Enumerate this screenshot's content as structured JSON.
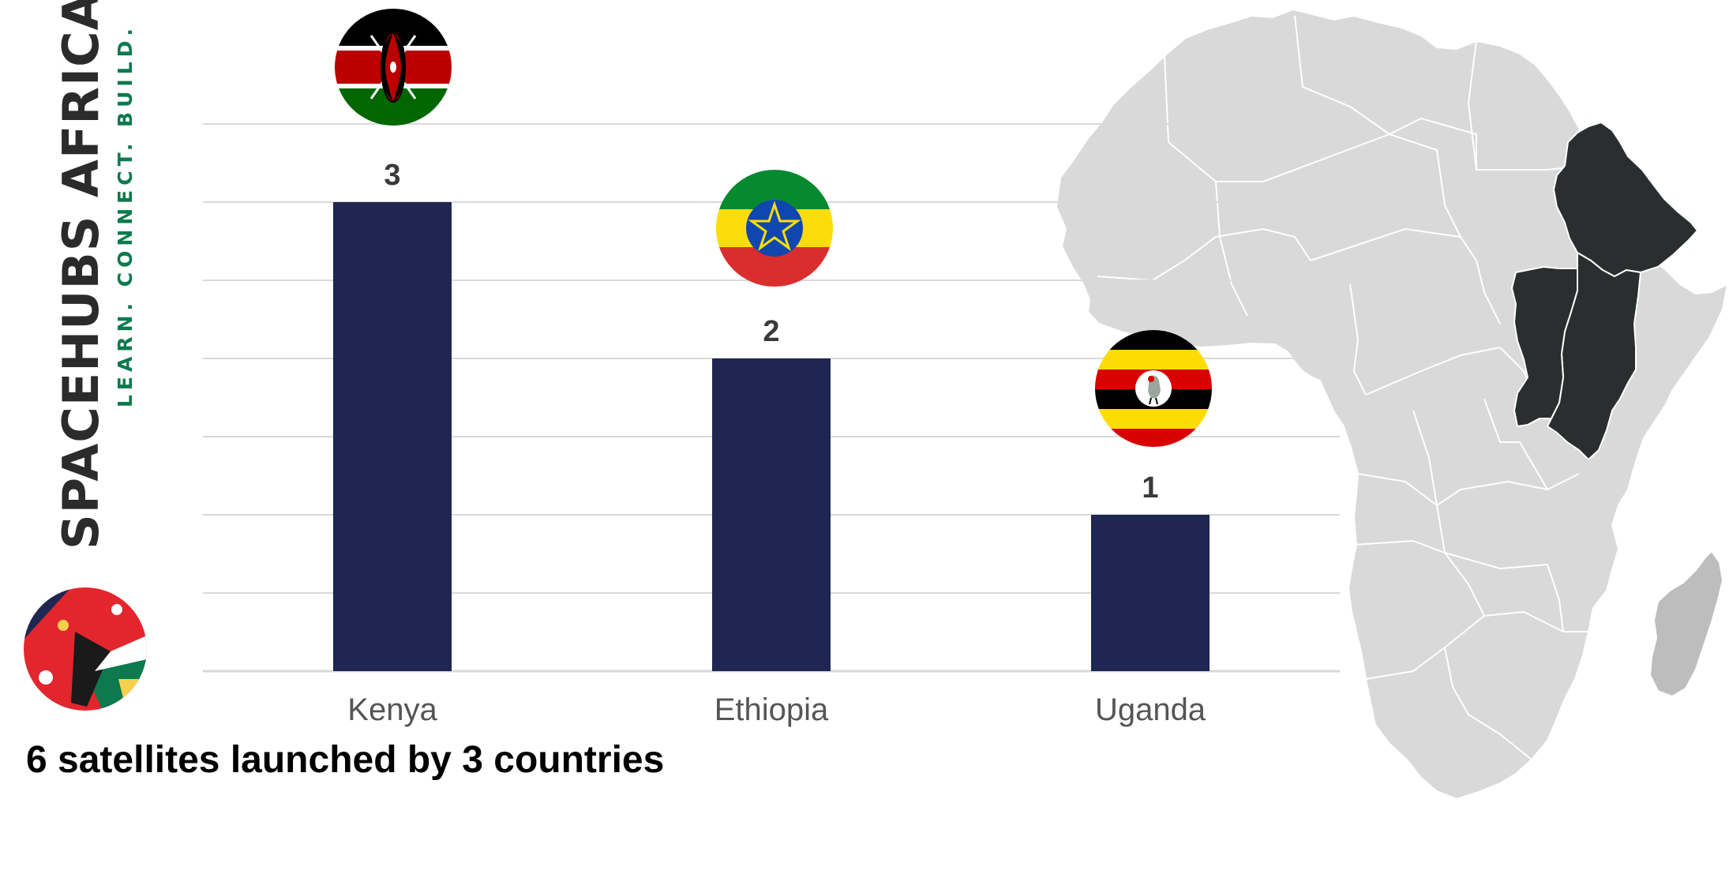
{
  "brand": {
    "name": "SPACEHUBS AFRICA",
    "tagline": "LEARN. CONNECT. BUILD."
  },
  "caption": "6 satellites launched by 3 countries",
  "colors": {
    "bar": "#1e2651",
    "grid": "#d9d9d9",
    "map_land": "#d9d9d9",
    "map_highlight": "#2b2e2f",
    "map_madagascar": "#bdbdbd"
  },
  "chart_data": {
    "type": "bar",
    "categories": [
      "Kenya",
      "Ethiopia",
      "Uganda"
    ],
    "values": [
      3,
      2,
      1
    ],
    "title": "6 satellites launched by 3 countries",
    "xlabel": "",
    "ylabel": "",
    "ylim": [
      0,
      3.5
    ],
    "grid": true,
    "gridline_step": 0.5,
    "flags": [
      "kenya-flag-icon",
      "ethiopia-flag-icon",
      "uganda-flag-icon"
    ],
    "map_highlight": [
      "Ethiopia",
      "Kenya",
      "Uganda"
    ]
  }
}
